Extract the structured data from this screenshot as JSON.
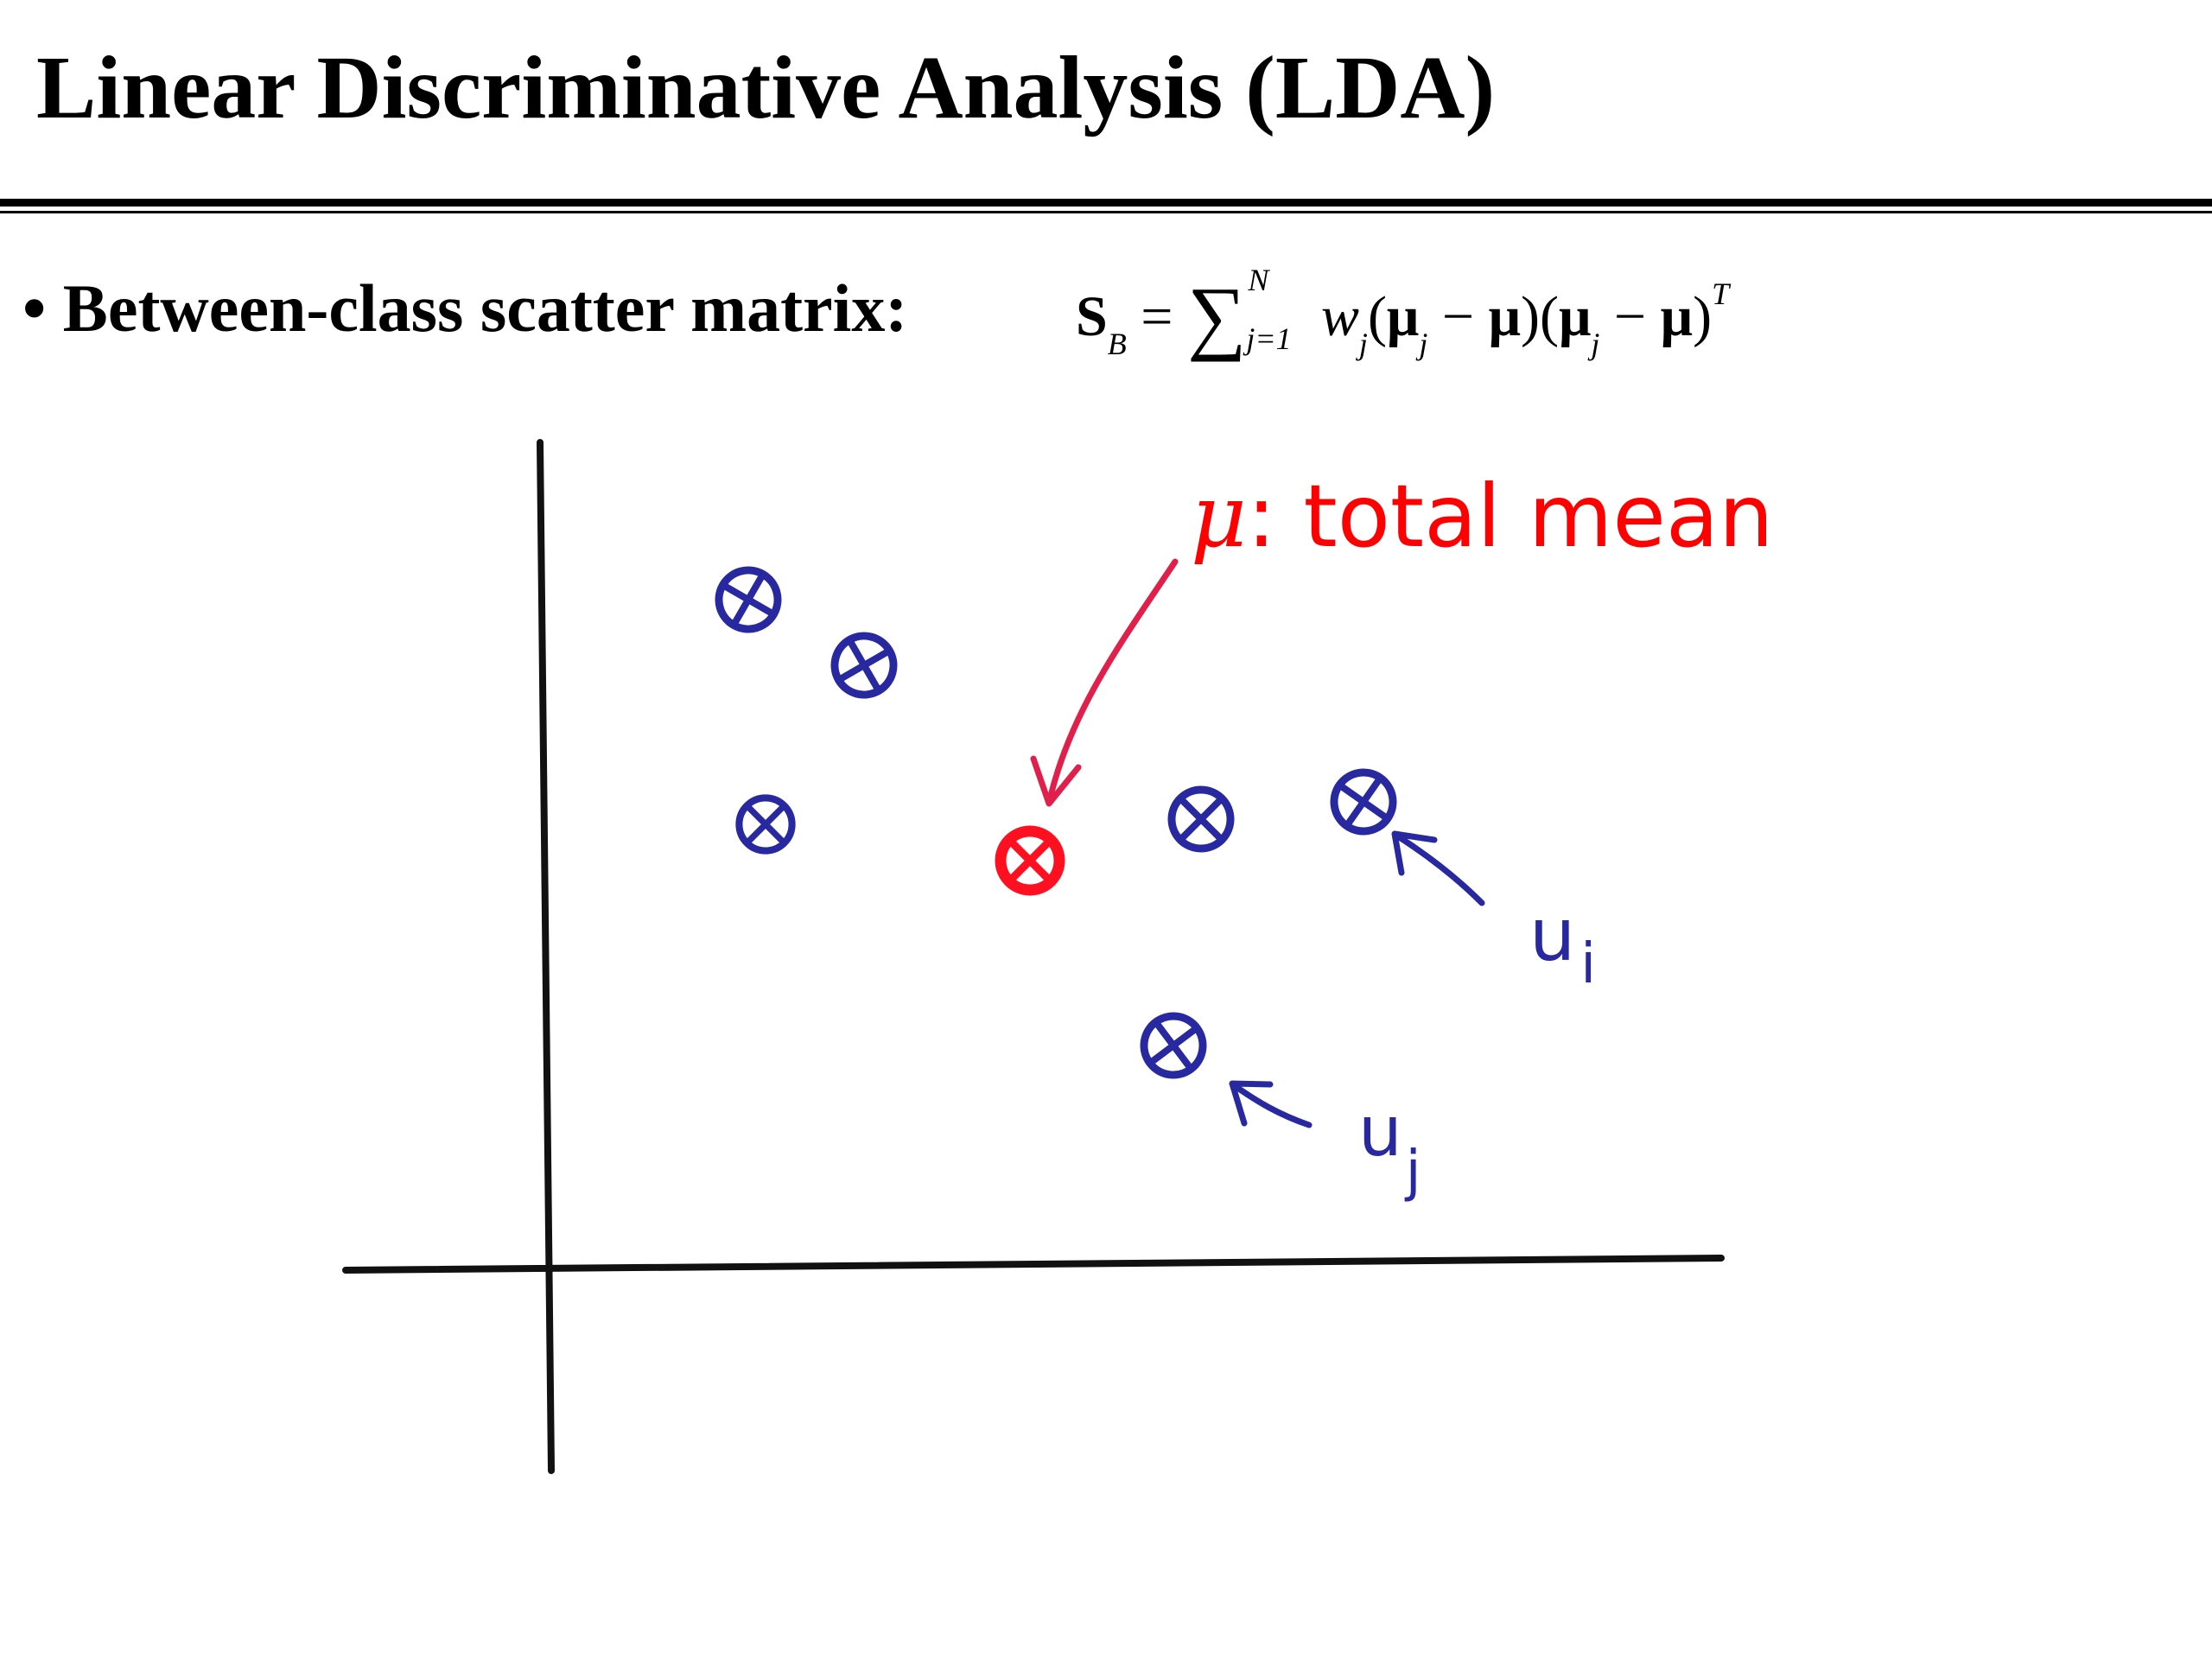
{
  "slide": {
    "title": "Linear Discriminative Analysis (LDA)",
    "bullet_label": "• Between-class scatter matrix:"
  },
  "formula": {
    "lhs": "S",
    "lhs_sub": "B",
    "eq": "=",
    "sum_upper": "N",
    "sum_lower": "j=1",
    "weight": "w",
    "weight_sub": "j",
    "open1": "(",
    "mu": "μ",
    "mu_sub": "j",
    "minus": " − ",
    "close1": ")",
    "open2": "(",
    "close2": ")",
    "transpose": "T"
  },
  "annotations": {
    "total_mean_symbol": "μ",
    "total_mean_text": ": total mean",
    "ui_label": "u",
    "ui_sub": "i",
    "uj_label": "u",
    "uj_sub": "j"
  },
  "colors": {
    "class_mean": "#2828a0",
    "total_mean": "#ff0000",
    "arrow_red": "#e0204a",
    "axes": "#111111"
  },
  "icons": {
    "class_mean_marker": "circled-cross",
    "total_mean_marker": "circled-cross"
  }
}
